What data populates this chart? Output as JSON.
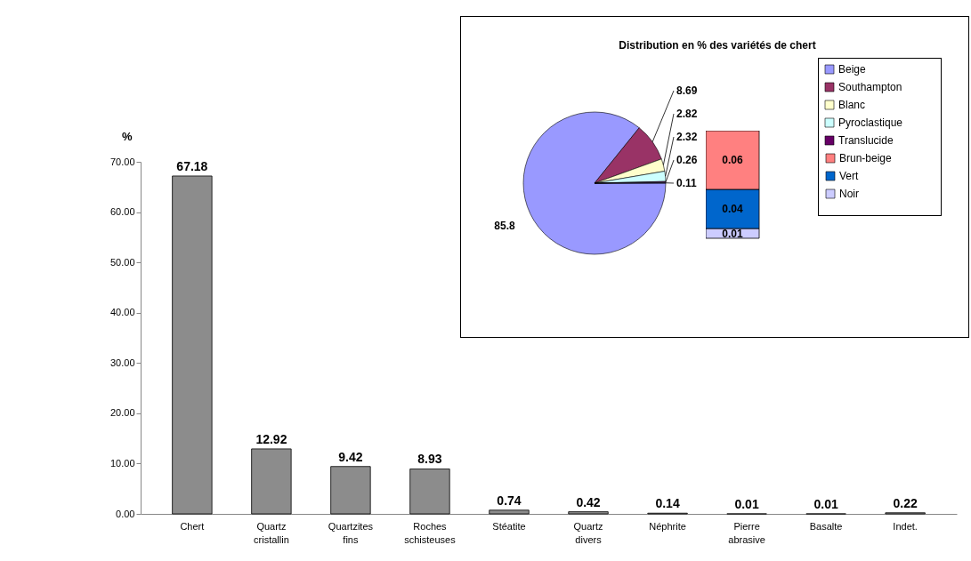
{
  "chart_data": [
    {
      "type": "bar",
      "ylabel": "%",
      "categories": [
        "Chert",
        "Quartz cristallin",
        "Quartzites fins",
        "Roches schisteuses",
        "Stéatite",
        "Quartz divers",
        "Néphrite",
        "Pierre abrasive",
        "Basalte",
        "Indet."
      ],
      "values": [
        67.18,
        12.92,
        9.42,
        8.93,
        0.74,
        0.42,
        0.14,
        0.01,
        0.01,
        0.22
      ],
      "color": "#8c8c8c",
      "data_labels": true,
      "ylim": [
        0,
        70
      ],
      "yticks": [
        {
          "value": 0,
          "label": "0.00"
        },
        {
          "value": 10,
          "label": "10.00"
        },
        {
          "value": 20,
          "label": "20.00"
        },
        {
          "value": 30,
          "label": "30.00"
        },
        {
          "value": 40,
          "label": "40.00"
        },
        {
          "value": 50,
          "label": "50.00"
        },
        {
          "value": 60,
          "label": "60.00"
        },
        {
          "value": 70,
          "label": "70.00"
        }
      ]
    },
    {
      "type": "pie",
      "title": "Distribution en % des variétés de chert",
      "categories": [
        "Beige",
        "Southampton",
        "Blanc",
        "Pyroclastique",
        "Translucide",
        null
      ],
      "values": [
        85.8,
        8.69,
        2.82,
        2.32,
        0.26,
        0.11
      ],
      "colors": [
        "#9999ff",
        "#993366",
        "#ffffcc",
        "#ccffff",
        "#660066",
        "#9999ff"
      ],
      "data_labels": true,
      "legend": "right"
    },
    {
      "type": "bar",
      "stacked": true,
      "categories": [
        null
      ],
      "data_labels": true,
      "legend": "right",
      "series": [
        {
          "name": "Noir",
          "color": "#ccccff",
          "values": [
            0.01
          ]
        },
        {
          "name": "Vert",
          "color": "#0066cc",
          "values": [
            0.04
          ]
        },
        {
          "name": "Brun-beige",
          "color": "#ff8080",
          "values": [
            0.06
          ]
        }
      ]
    }
  ]
}
